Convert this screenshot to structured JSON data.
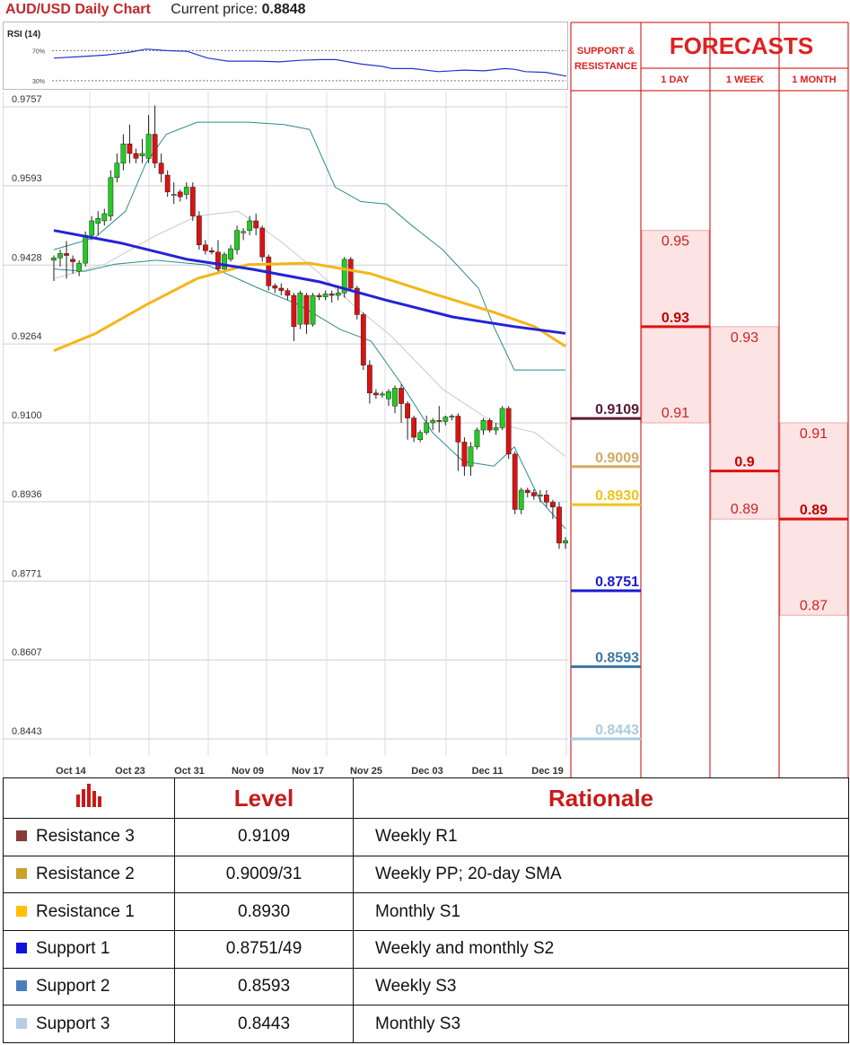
{
  "header": {
    "title": "AUD/USD Daily Chart",
    "price_label": "Current price:",
    "price_value": "0.8848"
  },
  "rsi": {
    "label": "RSI (14)",
    "levels": [
      "70%",
      "30%"
    ]
  },
  "chart_data": {
    "type": "candlestick",
    "title": "AUD/USD Daily Chart",
    "y_ticks": [
      "0.9757",
      "0.9593",
      "0.9428",
      "0.9264",
      "0.9100",
      "0.8936",
      "0.8771",
      "0.8607",
      "0.8443"
    ],
    "ylim": [
      0.8443,
      0.9757
    ],
    "x_ticks": [
      "Oct 14",
      "Oct 23",
      "Oct 31",
      "Nov 09",
      "Nov 17",
      "Nov 25",
      "Dec 03",
      "Dec 11",
      "Dec 19"
    ],
    "candles": [
      [
        0.9438,
        0.9443,
        0.9395,
        0.9448
      ],
      [
        0.9443,
        0.9452,
        0.9425,
        0.946
      ],
      [
        0.9452,
        0.9448,
        0.94,
        0.9478
      ],
      [
        0.944,
        0.9435,
        0.941,
        0.9448
      ],
      [
        0.9415,
        0.9432,
        0.9405,
        0.9438
      ],
      [
        0.9432,
        0.949,
        0.9425,
        0.9498
      ],
      [
        0.949,
        0.952,
        0.948,
        0.953
      ],
      [
        0.9515,
        0.9525,
        0.949,
        0.954
      ],
      [
        0.952,
        0.9535,
        0.951,
        0.9545
      ],
      [
        0.953,
        0.961,
        0.952,
        0.9625
      ],
      [
        0.961,
        0.964,
        0.96,
        0.966
      ],
      [
        0.964,
        0.968,
        0.9625,
        0.97
      ],
      [
        0.968,
        0.966,
        0.964,
        0.972
      ],
      [
        0.966,
        0.965,
        0.964,
        0.967
      ],
      [
        0.9655,
        0.966,
        0.964,
        0.969
      ],
      [
        0.965,
        0.97,
        0.964,
        0.974
      ],
      [
        0.97,
        0.964,
        0.963,
        0.976
      ],
      [
        0.964,
        0.9618,
        0.96,
        0.966
      ],
      [
        0.9615,
        0.958,
        0.957,
        0.9625
      ],
      [
        0.9575,
        0.9575,
        0.9555,
        0.96
      ],
      [
        0.958,
        0.957,
        0.956,
        0.9585
      ],
      [
        0.9575,
        0.959,
        0.9565,
        0.96
      ],
      [
        0.959,
        0.953,
        0.952,
        0.96
      ],
      [
        0.953,
        0.947,
        0.946,
        0.954
      ],
      [
        0.947,
        0.9458,
        0.945,
        0.948
      ],
      [
        0.9458,
        0.9455,
        0.945,
        0.9465
      ],
      [
        0.9455,
        0.942,
        0.941,
        0.948
      ],
      [
        0.942,
        0.945,
        0.9415,
        0.9455
      ],
      [
        0.944,
        0.9462,
        0.9435,
        0.947
      ],
      [
        0.946,
        0.95,
        0.945,
        0.951
      ],
      [
        0.9495,
        0.9498,
        0.948,
        0.9505
      ],
      [
        0.95,
        0.952,
        0.949,
        0.953
      ],
      [
        0.952,
        0.9505,
        0.949,
        0.9535
      ],
      [
        0.9505,
        0.9445,
        0.9435,
        0.951
      ],
      [
        0.9445,
        0.9385,
        0.9375,
        0.945
      ],
      [
        0.9385,
        0.938,
        0.937,
        0.939
      ],
      [
        0.938,
        0.9375,
        0.9365,
        0.939
      ],
      [
        0.9375,
        0.9365,
        0.9355,
        0.938
      ],
      [
        0.9365,
        0.93,
        0.927,
        0.937
      ],
      [
        0.9305,
        0.937,
        0.9295,
        0.9375
      ],
      [
        0.9365,
        0.9305,
        0.9285,
        0.937
      ],
      [
        0.9305,
        0.9365,
        0.93,
        0.937
      ],
      [
        0.9365,
        0.9362,
        0.9355,
        0.937
      ],
      [
        0.9362,
        0.9368,
        0.9355,
        0.9375
      ],
      [
        0.9368,
        0.9365,
        0.935,
        0.9375
      ],
      [
        0.9365,
        0.937,
        0.9355,
        0.938
      ],
      [
        0.937,
        0.944,
        0.936,
        0.9445
      ],
      [
        0.944,
        0.938,
        0.9375,
        0.9445
      ],
      [
        0.938,
        0.9325,
        0.9315,
        0.9385
      ],
      [
        0.9325,
        0.922,
        0.921,
        0.933
      ],
      [
        0.922,
        0.9162,
        0.914,
        0.923
      ],
      [
        0.9162,
        0.9158,
        0.915,
        0.917
      ],
      [
        0.9158,
        0.916,
        0.9152,
        0.9165
      ],
      [
        0.915,
        0.9165,
        0.9135,
        0.917
      ],
      [
        0.9135,
        0.9172,
        0.912,
        0.9178
      ],
      [
        0.9172,
        0.914,
        0.91,
        0.918
      ],
      [
        0.914,
        0.911,
        0.9065,
        0.9145
      ],
      [
        0.911,
        0.907,
        0.906,
        0.9115
      ],
      [
        0.9065,
        0.908,
        0.906,
        0.9085
      ],
      [
        0.908,
        0.91,
        0.9075,
        0.9115
      ],
      [
        0.91,
        0.9105,
        0.9085,
        0.911
      ],
      [
        0.9105,
        0.9103,
        0.908,
        0.9135
      ],
      [
        0.9103,
        0.9112,
        0.9095,
        0.9115
      ],
      [
        0.9112,
        0.9114,
        0.9105,
        0.9118
      ],
      [
        0.9114,
        0.906,
        0.9,
        0.912
      ],
      [
        0.906,
        0.901,
        0.899,
        0.907
      ],
      [
        0.901,
        0.905,
        0.899,
        0.906
      ],
      [
        0.905,
        0.9085,
        0.9045,
        0.909
      ],
      [
        0.9085,
        0.9105,
        0.9075,
        0.911
      ],
      [
        0.9105,
        0.9085,
        0.908,
        0.911
      ],
      [
        0.9085,
        0.909,
        0.9075,
        0.91
      ],
      [
        0.909,
        0.913,
        0.9085,
        0.9135
      ],
      [
        0.913,
        0.9035,
        0.9025,
        0.9135
      ],
      [
        0.9035,
        0.892,
        0.891,
        0.904
      ],
      [
        0.892,
        0.896,
        0.891,
        0.8965
      ],
      [
        0.896,
        0.8955,
        0.8945,
        0.8965
      ],
      [
        0.8955,
        0.8948,
        0.894,
        0.8962
      ],
      [
        0.8948,
        0.895,
        0.8935,
        0.896
      ],
      [
        0.895,
        0.8935,
        0.8925,
        0.896
      ],
      [
        0.8935,
        0.8925,
        0.89,
        0.894
      ],
      [
        0.8925,
        0.885,
        0.8838,
        0.8935
      ],
      [
        0.885,
        0.8855,
        0.8838,
        0.8862
      ]
    ],
    "ma_blue": [
      [
        0,
        0.95
      ],
      [
        0.13,
        0.9474
      ],
      [
        0.26,
        0.944
      ],
      [
        0.39,
        0.9419
      ],
      [
        0.52,
        0.9393
      ],
      [
        0.65,
        0.9355
      ],
      [
        0.78,
        0.932
      ],
      [
        0.9,
        0.93
      ],
      [
        1,
        0.9286
      ]
    ],
    "ma_yellow": [
      [
        0,
        0.925
      ],
      [
        0.08,
        0.9285
      ],
      [
        0.18,
        0.9345
      ],
      [
        0.28,
        0.94
      ],
      [
        0.38,
        0.9429
      ],
      [
        0.5,
        0.9432
      ],
      [
        0.62,
        0.941
      ],
      [
        0.74,
        0.9369
      ],
      [
        0.86,
        0.933
      ],
      [
        0.94,
        0.93
      ],
      [
        1,
        0.9259
      ]
    ],
    "bb_upper": [
      [
        0,
        0.946
      ],
      [
        0.08,
        0.9485
      ],
      [
        0.14,
        0.954
      ],
      [
        0.18,
        0.964
      ],
      [
        0.22,
        0.97
      ],
      [
        0.28,
        0.9725
      ],
      [
        0.38,
        0.9725
      ],
      [
        0.45,
        0.972
      ],
      [
        0.5,
        0.971
      ],
      [
        0.55,
        0.959
      ],
      [
        0.6,
        0.956
      ],
      [
        0.65,
        0.9555
      ],
      [
        0.7,
        0.951
      ],
      [
        0.76,
        0.946
      ],
      [
        0.83,
        0.938
      ],
      [
        0.86,
        0.93
      ],
      [
        0.9,
        0.921
      ],
      [
        1,
        0.921
      ]
    ],
    "bb_lower": [
      [
        0,
        0.942
      ],
      [
        0.06,
        0.9415
      ],
      [
        0.12,
        0.943
      ],
      [
        0.2,
        0.9438
      ],
      [
        0.3,
        0.9428
      ],
      [
        0.4,
        0.938
      ],
      [
        0.48,
        0.9345
      ],
      [
        0.56,
        0.9294
      ],
      [
        0.62,
        0.927
      ],
      [
        0.68,
        0.918
      ],
      [
        0.74,
        0.908
      ],
      [
        0.8,
        0.902
      ],
      [
        0.86,
        0.901
      ],
      [
        0.9,
        0.905
      ],
      [
        0.95,
        0.894
      ],
      [
        1,
        0.888
      ]
    ],
    "bb_mid": [
      [
        0,
        0.94
      ],
      [
        0.1,
        0.943
      ],
      [
        0.2,
        0.949
      ],
      [
        0.28,
        0.953
      ],
      [
        0.36,
        0.954
      ],
      [
        0.44,
        0.948
      ],
      [
        0.52,
        0.941
      ],
      [
        0.58,
        0.935
      ],
      [
        0.66,
        0.928
      ],
      [
        0.76,
        0.917
      ],
      [
        0.86,
        0.91
      ],
      [
        0.94,
        0.908
      ],
      [
        1,
        0.903
      ]
    ],
    "rsi_values": [
      [
        0,
        0.6
      ],
      [
        0.05,
        0.62
      ],
      [
        0.1,
        0.64
      ],
      [
        0.15,
        0.68
      ],
      [
        0.18,
        0.72
      ],
      [
        0.22,
        0.7
      ],
      [
        0.26,
        0.69
      ],
      [
        0.3,
        0.6
      ],
      [
        0.34,
        0.56
      ],
      [
        0.4,
        0.56
      ],
      [
        0.44,
        0.55
      ],
      [
        0.48,
        0.57
      ],
      [
        0.52,
        0.58
      ],
      [
        0.55,
        0.58
      ],
      [
        0.6,
        0.52
      ],
      [
        0.64,
        0.49
      ],
      [
        0.66,
        0.46
      ],
      [
        0.7,
        0.46
      ],
      [
        0.75,
        0.42
      ],
      [
        0.8,
        0.44
      ],
      [
        0.84,
        0.43
      ],
      [
        0.88,
        0.46
      ],
      [
        0.9,
        0.45
      ],
      [
        0.92,
        0.42
      ],
      [
        0.96,
        0.41
      ],
      [
        1,
        0.36
      ]
    ]
  },
  "forecast": {
    "sr_header": [
      "SUPPORT &",
      "RESISTANCE"
    ],
    "title": "FORECASTS",
    "columns": [
      "1 DAY",
      "1 WEEK",
      "1 MONTH"
    ],
    "sr_levels": [
      {
        "value": "0.9109",
        "price": 0.9109,
        "color": "#5a1a35"
      },
      {
        "value": "0.9009",
        "price": 0.9009,
        "color": "#d2aa64"
      },
      {
        "value": "0.8930",
        "price": 0.893,
        "color": "#f0c419"
      },
      {
        "value": "0.8751",
        "price": 0.8751,
        "color": "#1a1ad2"
      },
      {
        "value": "0.8593",
        "price": 0.8593,
        "color": "#3c78a0"
      },
      {
        "value": "0.8443",
        "price": 0.8443,
        "color": "#aaccdd"
      }
    ],
    "day": {
      "high": "0.95",
      "high_price": 0.95,
      "mid": "0.93",
      "mid_price": 0.93,
      "low": "0.91",
      "low_price": 0.91
    },
    "week": {
      "high": "0.93",
      "high_price": 0.93,
      "mid": "0.9",
      "mid_price": 0.9,
      "low": "0.89",
      "low_price": 0.89
    },
    "month": {
      "high": "0.91",
      "high_price": 0.91,
      "mid": "0.89",
      "mid_price": 0.89,
      "low": "0.87",
      "low_price": 0.87
    }
  },
  "table": {
    "headers": {
      "level": "Level",
      "rationale": "Rationale"
    },
    "header_icon": "bar-chart-icon",
    "rows": [
      {
        "name": "Resistance 3",
        "level": "0.9109",
        "rationale": "Weekly R1",
        "color": "#8b3a3a"
      },
      {
        "name": "Resistance 2",
        "level": "0.9009/31",
        "rationale": "Weekly PP; 20-day SMA",
        "color": "#c9a227"
      },
      {
        "name": "Resistance 1",
        "level": "0.8930",
        "rationale": "Monthly S1",
        "color": "#ffc000"
      },
      {
        "name": "Support 1",
        "level": "0.8751/49",
        "rationale": "Weekly and monthly S2",
        "color": "#1010e0"
      },
      {
        "name": "Support 2",
        "level": "0.8593",
        "rationale": "Weekly S3",
        "color": "#4a7ebb"
      },
      {
        "name": "Support 3",
        "level": "0.8443",
        "rationale": "Monthly S3",
        "color": "#b8cce4"
      }
    ]
  }
}
